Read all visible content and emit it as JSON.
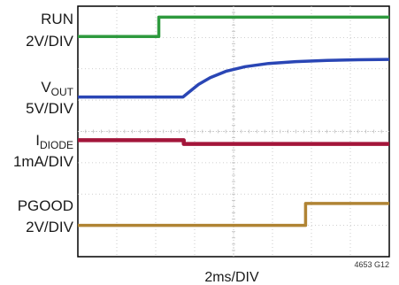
{
  "chart_data": {
    "type": "line",
    "xlabel": "2ms/DIV",
    "figure_id": "4653 G12",
    "x_divisions": 8,
    "y_divisions": 8,
    "grid": true,
    "colors": {
      "run": "#2e9a3e",
      "vout": "#2a46b5",
      "idiode": "#a3153a",
      "pgood": "#b08434",
      "grid": "#bfbfbf"
    },
    "series": [
      {
        "key": "run",
        "label_main": "RUN",
        "label_sub": "",
        "label_scale": "2V/DIV",
        "points": [
          [
            0,
            7.03
          ],
          [
            2.08,
            7.03
          ],
          [
            2.08,
            7.65
          ],
          [
            8,
            7.65
          ]
        ]
      },
      {
        "key": "vout",
        "label_main": "V",
        "label_sub": "OUT",
        "label_scale": "5V/DIV",
        "points": [
          [
            0,
            5.1
          ],
          [
            2.7,
            5.1
          ],
          [
            2.85,
            5.25
          ],
          [
            3.1,
            5.5
          ],
          [
            3.4,
            5.72
          ],
          [
            3.8,
            5.92
          ],
          [
            4.3,
            6.07
          ],
          [
            4.9,
            6.17
          ],
          [
            5.6,
            6.23
          ],
          [
            6.4,
            6.27
          ],
          [
            7.2,
            6.29
          ],
          [
            8,
            6.3
          ]
        ]
      },
      {
        "key": "idiode",
        "label_main": "I",
        "label_sub": "DIODE",
        "label_scale": "1mA/DIV",
        "points": [
          [
            0,
            3.72
          ],
          [
            2.72,
            3.72
          ],
          [
            2.72,
            3.6
          ],
          [
            8,
            3.6
          ]
        ]
      },
      {
        "key": "pgood",
        "label_main": "PGOOD",
        "label_sub": "",
        "label_scale": "2V/DIV",
        "points": [
          [
            0,
            1.0
          ],
          [
            5.85,
            1.0
          ],
          [
            5.85,
            1.7
          ],
          [
            8,
            1.7
          ]
        ]
      }
    ]
  }
}
